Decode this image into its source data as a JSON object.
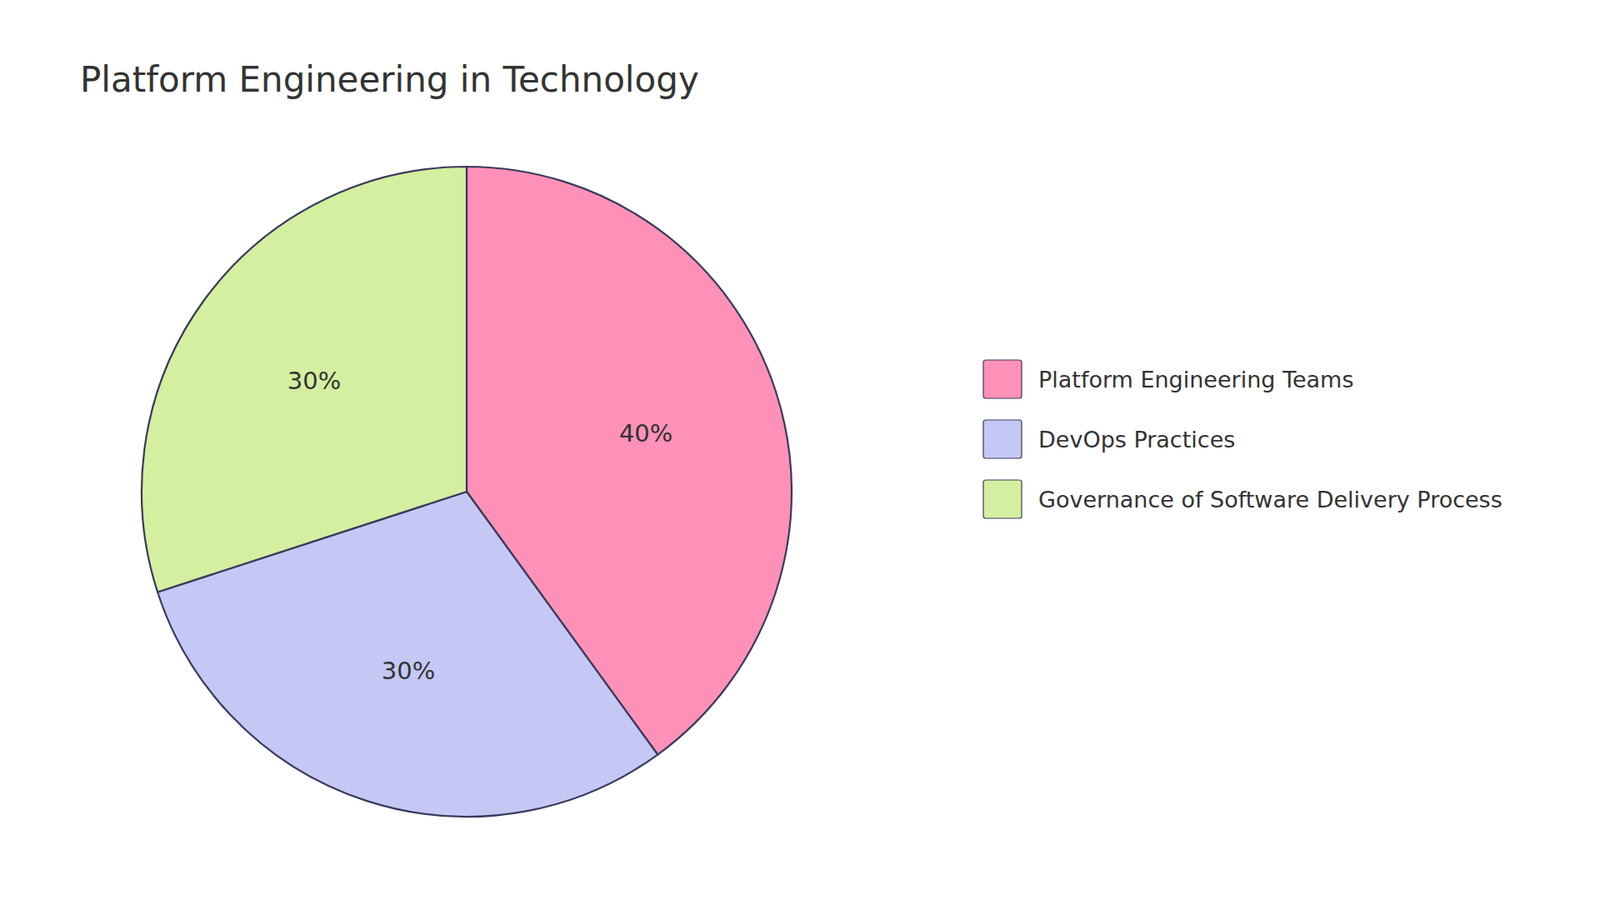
{
  "chart_data": {
    "type": "pie",
    "title": "Platform Engineering in Technology",
    "categories": [
      "Platform Engineering Teams",
      "DevOps Practices",
      "Governance of Software Delivery Process"
    ],
    "values": [
      40,
      30,
      30
    ],
    "value_labels": [
      "40%",
      "30%",
      "30%"
    ],
    "colors": [
      "#FF91B8",
      "#C5C8F5",
      "#D4EFA0"
    ],
    "data_labels": true,
    "legend": "right"
  }
}
